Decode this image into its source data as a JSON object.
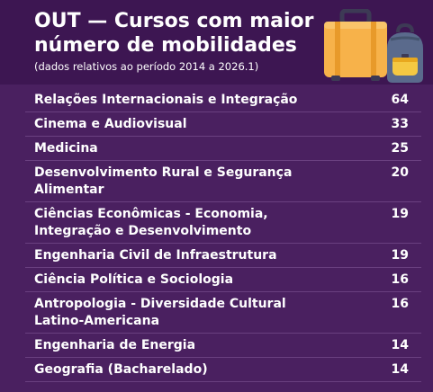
{
  "header": {
    "title": "OUT — Cursos com maior número de mobilidades",
    "subtitle": "(dados relativos ao período 2014 a 2026.1)"
  },
  "illustration": {
    "icons": [
      "suitcase-icon",
      "backpack-icon"
    ]
  },
  "rows": [
    {
      "name": "Relações Internacionais e Integração",
      "value": "64"
    },
    {
      "name": "Cinema e Audiovisual",
      "value": "33"
    },
    {
      "name": "Medicina",
      "value": "25"
    },
    {
      "name": "Desenvolvimento Rural e Segurança Alimentar",
      "value": "20"
    },
    {
      "name": "Ciências Econômicas - Economia, Integração e Desenvolvimento",
      "value": "19"
    },
    {
      "name": "Engenharia Civil de Infraestrutura",
      "value": "19"
    },
    {
      "name": "Ciência Política e Sociologia",
      "value": "16"
    },
    {
      "name": "Antropologia - Diversidade Cultural Latino-Americana",
      "value": "16"
    },
    {
      "name": "Engenharia de Energia",
      "value": "14"
    },
    {
      "name": "Geografia (Bacharelado)",
      "value": "14"
    }
  ]
}
